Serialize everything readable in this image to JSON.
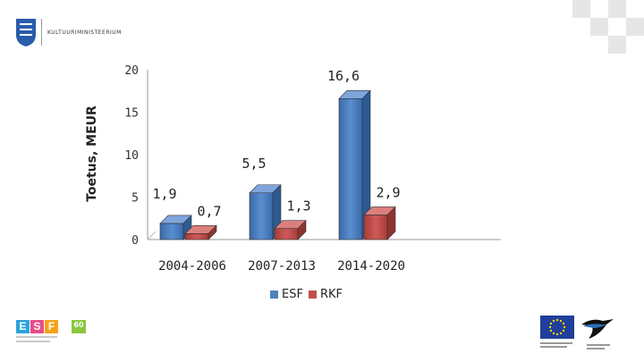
{
  "header": {
    "ministry_name": "KULTUURIMINISTEERIUM"
  },
  "chart_data": {
    "type": "bar",
    "ylabel": "Toetus, MEUR",
    "ylim": [
      0,
      20
    ],
    "yticks": [
      "0",
      "5",
      "10",
      "15",
      "20"
    ],
    "categories": [
      "2004-2006",
      "2007-2013",
      "2014-2020"
    ],
    "series": [
      {
        "name": "ESF",
        "color": "#4f81bd",
        "values": [
          1.9,
          5.5,
          16.6
        ],
        "labels": [
          "1,9",
          "5,5",
          "16,6"
        ]
      },
      {
        "name": "RKF",
        "color": "#c0504d",
        "values": [
          0.7,
          1.3,
          2.9
        ],
        "labels": [
          "0,7",
          "1,3",
          "2,9"
        ]
      }
    ],
    "legend_position": "bottom"
  },
  "colors": {
    "esf": "#4f81bd",
    "rkf": "#c0504d"
  },
  "footer": {
    "esf_letters": [
      "E",
      "S",
      "F"
    ],
    "esf_badge": "60",
    "icons": [
      "ministry-crest-icon",
      "esf-logo-icon",
      "eu-flag-icon",
      "estonian-swallow-icon"
    ]
  }
}
